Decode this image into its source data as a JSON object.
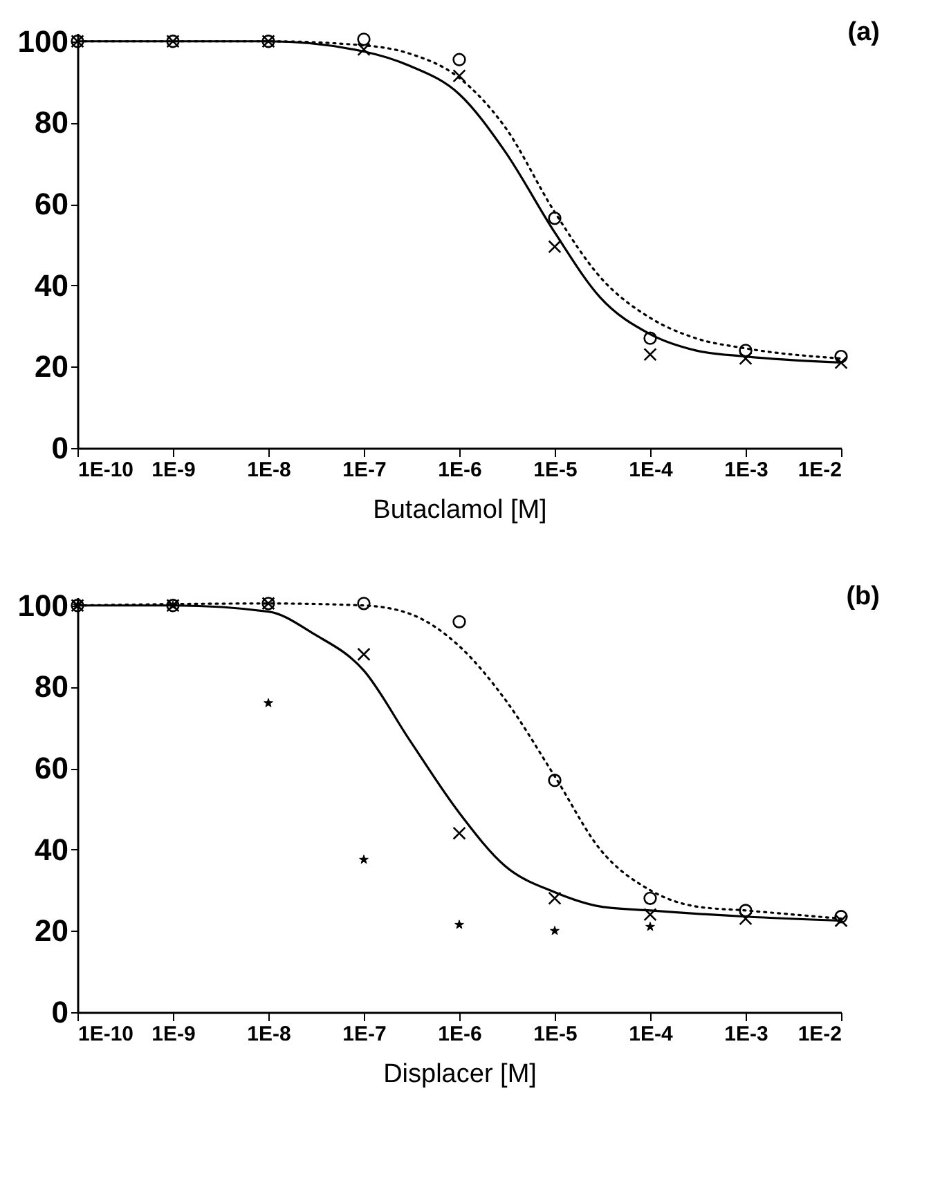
{
  "chart_data": [
    {
      "type": "scatter",
      "annotations": [
        "(a)"
      ],
      "xlabel": "Butaclamol [M]",
      "log": "x",
      "grid": false,
      "xlim": [
        1e-10,
        0.01
      ],
      "ylim": [
        0,
        102
      ],
      "xticks": [
        {
          "value": 1e-10,
          "label": "1E-10"
        },
        {
          "value": 1e-09,
          "label": "1E-9"
        },
        {
          "value": 1e-08,
          "label": "1E-8"
        },
        {
          "value": 1e-07,
          "label": "1E-7"
        },
        {
          "value": 1e-06,
          "label": "1E-6"
        },
        {
          "value": 1e-05,
          "label": "1E-5"
        },
        {
          "value": 0.0001,
          "label": "1E-4"
        },
        {
          "value": 0.001,
          "label": "1E-3"
        },
        {
          "value": 0.01,
          "label": "1E-2"
        }
      ],
      "yticks": [
        0,
        20,
        40,
        60,
        80,
        100
      ],
      "x": [
        1e-10,
        1e-09,
        1e-08,
        1e-07,
        1e-06,
        1e-05,
        0.0001,
        0.001,
        0.01
      ],
      "series": [
        {
          "marker": "circle",
          "color": "#000000",
          "values": [
            100,
            100,
            100,
            100.5,
            95.5,
            56.5,
            27,
            24,
            22.5
          ]
        },
        {
          "marker": "cross",
          "color": "#000000",
          "values": [
            100,
            100,
            100,
            98,
            91.5,
            49.5,
            23,
            22,
            21
          ]
        },
        {
          "type": "line",
          "marker": "none",
          "line_style": "solid",
          "color": "#000000",
          "x": [
            1e-10,
            1e-08,
            1e-07,
            3e-07,
            1e-06,
            3e-06,
            1e-05,
            3e-05,
            0.0001,
            0.0003,
            0.001,
            0.01
          ],
          "values": [
            100,
            100,
            97.5,
            94,
            87,
            73,
            53,
            37,
            28,
            24,
            22.5,
            21
          ]
        },
        {
          "type": "line",
          "marker": "none",
          "line_style": "dotted",
          "color": "#000000",
          "x": [
            1e-10,
            1e-08,
            1e-07,
            3e-07,
            1e-06,
            3e-06,
            1e-05,
            3e-05,
            0.0001,
            0.0003,
            0.001,
            0.01
          ],
          "values": [
            100,
            100,
            99,
            97,
            91,
            79,
            58,
            42,
            32,
            27,
            24.5,
            22
          ]
        }
      ]
    },
    {
      "type": "scatter",
      "annotations": [
        "(b)"
      ],
      "xlabel": "Displacer [M]",
      "log": "x",
      "grid": false,
      "xlim": [
        1e-10,
        0.01
      ],
      "ylim": [
        0,
        102
      ],
      "xticks": [
        {
          "value": 1e-10,
          "label": "1E-10"
        },
        {
          "value": 1e-09,
          "label": "1E-9"
        },
        {
          "value": 1e-08,
          "label": "1E-8"
        },
        {
          "value": 1e-07,
          "label": "1E-7"
        },
        {
          "value": 1e-06,
          "label": "1E-6"
        },
        {
          "value": 1e-05,
          "label": "1E-5"
        },
        {
          "value": 0.0001,
          "label": "1E-4"
        },
        {
          "value": 0.001,
          "label": "1E-3"
        },
        {
          "value": 0.01,
          "label": "1E-2"
        }
      ],
      "yticks": [
        0,
        20,
        40,
        60,
        80,
        100
      ],
      "x": [
        1e-10,
        1e-09,
        1e-08,
        1e-07,
        1e-06,
        1e-05,
        0.0001,
        0.001,
        0.01
      ],
      "series": [
        {
          "marker": "circle",
          "color": "#000000",
          "values": [
            100,
            100,
            100.5,
            100.5,
            96,
            57,
            28,
            25,
            23.5
          ]
        },
        {
          "marker": "cross",
          "color": "#000000",
          "values": [
            100,
            100,
            100.5,
            88,
            44,
            28,
            24,
            23,
            22.5
          ]
        },
        {
          "marker": "star",
          "color": "#000000",
          "values": [
            100,
            100,
            76,
            37.5,
            21.5,
            20,
            21,
            null,
            null
          ]
        },
        {
          "type": "line",
          "marker": "none",
          "line_style": "solid",
          "color": "#000000",
          "x": [
            1e-10,
            1e-09,
            1e-08,
            3e-08,
            1e-07,
            3e-07,
            1e-06,
            3e-06,
            1e-05,
            3e-05,
            0.0001,
            0.001,
            0.01
          ],
          "values": [
            100,
            100,
            98.5,
            93,
            84,
            67,
            49,
            36,
            29.5,
            26,
            25,
            23.5,
            22.5
          ]
        },
        {
          "type": "line",
          "marker": "none",
          "line_style": "dotted",
          "color": "#000000",
          "x": [
            1e-10,
            1e-08,
            1e-07,
            3e-07,
            1e-06,
            3e-06,
            1e-05,
            3e-05,
            0.0001,
            0.0003,
            0.001,
            0.01
          ],
          "values": [
            100,
            100.5,
            100,
            98,
            90,
            77,
            58,
            40,
            30,
            26,
            25,
            23
          ]
        }
      ]
    }
  ]
}
